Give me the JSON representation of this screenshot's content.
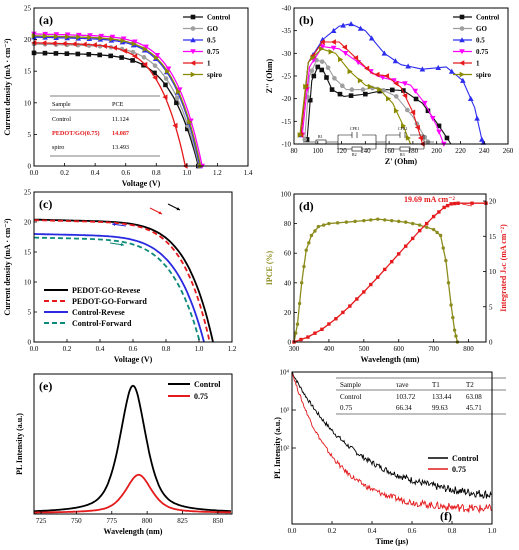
{
  "colors": {
    "control": "#111111",
    "go": "#9e9e9e",
    "p05": "#2d2df0",
    "p075": "#ff00ff",
    "p1": "#e41a1c",
    "spiro": "#8a8a00",
    "ipce": "#8c8c1e",
    "jsc": "#e41a1c",
    "pedot_rev": "#000000",
    "pedot_fwd": "#e41a1c",
    "control_rev": "#2a2ae0",
    "control_fwd": "#0a8a7a",
    "pl_control": "#000000",
    "pl_075": "#e41a1c"
  },
  "chart_data": [
    {
      "id": "a",
      "panel_label": "(a)",
      "type": "line",
      "xlabel": "Voltage (V)",
      "ylabel": "Current density (mA · cm⁻²)",
      "xlim": [
        0,
        1.4
      ],
      "ylim": [
        0,
        25
      ],
      "xticks": [
        "0.0",
        "0.2",
        "0.4",
        "0.6",
        "0.8",
        "1.0",
        "1.2",
        "1.4"
      ],
      "yticks": [
        "0",
        "5",
        "10",
        "15",
        "20",
        "25"
      ],
      "legend_position": "top-right",
      "series": [
        {
          "name": "Control",
          "jsc": 17.9,
          "voc": 1.075,
          "knee": 0.3,
          "marker": "square"
        },
        {
          "name": "GO",
          "jsc": 19.3,
          "voc": 1.08,
          "knee": 0.3,
          "marker": "circle"
        },
        {
          "name": "0.5",
          "jsc": 20.4,
          "voc": 1.085,
          "knee": 0.28,
          "marker": "triangle-up"
        },
        {
          "name": "0.75",
          "jsc": 20.9,
          "voc": 1.1,
          "knee": 0.27,
          "marker": "triangle-down"
        },
        {
          "name": "1",
          "jsc": 19.5,
          "voc": 0.99,
          "knee": 0.3,
          "marker": "triangle-left"
        },
        {
          "name": "spiro",
          "jsc": 20.6,
          "voc": 1.09,
          "knee": 0.28,
          "marker": "triangle-right"
        }
      ],
      "table": {
        "headers": [
          "Sample",
          "PCE"
        ],
        "rows": [
          [
            "Control",
            "11.124"
          ],
          [
            "PEDOT/GO(0.75)",
            "14.087"
          ],
          [
            "spiro",
            "13.493"
          ]
        ]
      }
    },
    {
      "id": "b",
      "panel_label": "(b)",
      "type": "line",
      "xlabel": "Z' (Ohm)",
      "ylabel": "Z'' (Ohm)",
      "xlim": [
        80,
        260
      ],
      "ylim": [
        -40,
        -10
      ],
      "y_inverted": true,
      "xticks": [
        "80",
        "100",
        "120",
        "140",
        "160",
        "180",
        "200",
        "220",
        "240",
        "260"
      ],
      "yticks": [
        "-40",
        "-35",
        "-30",
        "-25",
        "-20",
        "-15",
        "-10"
      ],
      "legend_position": "top-right",
      "series": [
        {
          "name": "Control",
          "points": [
            [
              91,
              -11
            ],
            [
              95,
              -24
            ],
            [
              100,
              -27
            ],
            [
              105,
              -26
            ],
            [
              112,
              -22
            ],
            [
              122,
              -20.5
            ],
            [
              140,
              -21
            ],
            [
              158,
              -22
            ],
            [
              172,
              -21.8
            ],
            [
              188,
              -19
            ],
            [
              202,
              -14
            ],
            [
              212,
              -10
            ]
          ]
        },
        {
          "name": "GO",
          "points": [
            [
              89,
              -11
            ],
            [
              93,
              -25
            ],
            [
              99,
              -28.5
            ],
            [
              106,
              -28
            ],
            [
              114,
              -24.5
            ],
            [
              124,
              -22
            ],
            [
              138,
              -22
            ],
            [
              150,
              -22.5
            ],
            [
              166,
              -20.5
            ],
            [
              180,
              -16
            ],
            [
              190,
              -11.5
            ],
            [
              194,
              -10
            ]
          ]
        },
        {
          "name": "0.5",
          "points": [
            [
              86,
              -12
            ],
            [
              92,
              -28
            ],
            [
              104,
              -33
            ],
            [
              118,
              -36
            ],
            [
              128,
              -36.5
            ],
            [
              140,
              -35
            ],
            [
              156,
              -30
            ],
            [
              170,
              -27.5
            ],
            [
              188,
              -26.5
            ],
            [
              208,
              -27
            ],
            [
              222,
              -24
            ],
            [
              232,
              -18
            ],
            [
              238,
              -11
            ],
            [
              240,
              -10
            ]
          ]
        },
        {
          "name": "0.75",
          "points": [
            [
              87,
              -12
            ],
            [
              93,
              -27
            ],
            [
              104,
              -31.5
            ],
            [
              118,
              -31
            ],
            [
              134,
              -28
            ],
            [
              150,
              -25
            ],
            [
              164,
              -24
            ],
            [
              178,
              -23
            ],
            [
              190,
              -19
            ],
            [
              200,
              -14
            ],
            [
              206,
              -10
            ]
          ]
        },
        {
          "name": "1",
          "points": [
            [
              86,
              -12
            ],
            [
              92,
              -28
            ],
            [
              104,
              -32.5
            ],
            [
              118,
              -32.5
            ],
            [
              132,
              -29
            ],
            [
              146,
              -25.5
            ],
            [
              158,
              -25
            ],
            [
              170,
              -22.5
            ],
            [
              180,
              -17
            ],
            [
              186,
              -12
            ],
            [
              188,
              -10
            ]
          ]
        },
        {
          "name": "spiro",
          "points": [
            [
              85,
              -12
            ],
            [
              92,
              -28
            ],
            [
              103,
              -31
            ],
            [
              115,
              -30
            ],
            [
              127,
              -26
            ],
            [
              140,
              -23
            ],
            [
              152,
              -22
            ],
            [
              163,
              -19
            ],
            [
              172,
              -14
            ],
            [
              178,
              -10
            ]
          ]
        }
      ],
      "circuit_labels": [
        "R1",
        "CPE1",
        "CPE2",
        "R2",
        "R3"
      ]
    },
    {
      "id": "c",
      "panel_label": "(c)",
      "type": "line",
      "xlabel": "Voltage (V)",
      "ylabel": "Current density (mA · cm⁻²)",
      "xlim": [
        0,
        1.2
      ],
      "ylim": [
        0,
        25
      ],
      "xticks": [
        "0.0",
        "0.2",
        "0.4",
        "0.6",
        "0.8",
        "1.0",
        "1.2"
      ],
      "yticks": [
        "0",
        "5",
        "10",
        "15",
        "20",
        "25"
      ],
      "legend_position": "bottom-left",
      "series": [
        {
          "name": "PEDOT-GO-Revese",
          "jsc": 20.4,
          "voc": 1.085,
          "knee": 0.24,
          "dash": false
        },
        {
          "name": "PEDOT-GO-Forward",
          "jsc": 20.3,
          "voc": 1.065,
          "knee": 0.25,
          "dash": true
        },
        {
          "name": "Control-Revese",
          "jsc": 18.0,
          "voc": 1.03,
          "knee": 0.28,
          "dash": false
        },
        {
          "name": "Control-Forward",
          "jsc": 17.4,
          "voc": 1.005,
          "knee": 0.3,
          "dash": true
        }
      ]
    },
    {
      "id": "d",
      "panel_label": "(d)",
      "type": "line",
      "xlabel": "Wavelength (nm)",
      "ylabel": "IPCE (%)",
      "ylabel_right": "Integrated Jₛᴄ (mA cm⁻²)",
      "xlim": [
        300,
        850
      ],
      "ylim": [
        0,
        100
      ],
      "ylim_right": [
        0,
        21
      ],
      "xticks": [
        "300",
        "400",
        "500",
        "600",
        "700",
        "800"
      ],
      "yticks": [
        "0",
        "20",
        "40",
        "60",
        "80",
        "100"
      ],
      "yticks_right": [
        "0",
        "5",
        "10",
        "15",
        "20"
      ],
      "annotation": "19.69 mA cm⁻²",
      "series": [
        {
          "name": "IPCE",
          "points": [
            [
              300,
              0
            ],
            [
              310,
              12
            ],
            [
              322,
              40
            ],
            [
              335,
              62
            ],
            [
              350,
              72
            ],
            [
              370,
              78
            ],
            [
              400,
              80
            ],
            [
              450,
              81
            ],
            [
              500,
              82
            ],
            [
              540,
              83
            ],
            [
              580,
              82
            ],
            [
              620,
              81
            ],
            [
              660,
              79
            ],
            [
              700,
              76
            ],
            [
              720,
              72
            ],
            [
              735,
              55
            ],
            [
              750,
              25
            ],
            [
              760,
              8
            ],
            [
              768,
              0
            ]
          ]
        },
        {
          "name": "Integrated Jsc",
          "points": [
            [
              300,
              0
            ],
            [
              340,
              0.7
            ],
            [
              380,
              1.8
            ],
            [
              420,
              3.3
            ],
            [
              460,
              5.1
            ],
            [
              500,
              7.1
            ],
            [
              540,
              9.2
            ],
            [
              580,
              11.4
            ],
            [
              620,
              13.6
            ],
            [
              660,
              15.8
            ],
            [
              700,
              17.8
            ],
            [
              730,
              19.1
            ],
            [
              750,
              19.6
            ],
            [
              770,
              19.69
            ],
            [
              850,
              19.69
            ]
          ]
        }
      ]
    },
    {
      "id": "e",
      "panel_label": "(e)",
      "type": "line",
      "xlabel": "Wavelength (nm)",
      "ylabel": "PL Intensity (a.u.)",
      "xlim": [
        720,
        860
      ],
      "ylim": [
        0,
        1.1
      ],
      "xticks": [
        "725",
        "750",
        "775",
        "800",
        "825",
        "850"
      ],
      "legend_position": "top-right",
      "series": [
        {
          "name": "Control",
          "peak": 790,
          "amplitude": 1.0,
          "width": 11
        },
        {
          "name": "0.75",
          "peak": 794,
          "amplitude": 0.3,
          "width": 11
        }
      ]
    },
    {
      "id": "f",
      "panel_label": "(f)",
      "type": "line",
      "xlabel": "Time (µs)",
      "ylabel": "PL Intensity (a.u.)",
      "xlim": [
        0,
        1.0
      ],
      "ylim_log": [
        0,
        4
      ],
      "xticks": [
        "0.0",
        "0.2",
        "0.4",
        "0.6",
        "0.8",
        "1.0"
      ],
      "yticks": [
        "10²",
        "10³",
        "10⁴"
      ],
      "legend_position": "middle-right",
      "series": [
        {
          "name": "Control",
          "tau_avg_ns": 103.72,
          "y_end_log": 1.0
        },
        {
          "name": "0.75",
          "tau_avg_ns": 66.34,
          "y_end_log": 0.6
        }
      ],
      "table": {
        "headers": [
          "Sample",
          "τave",
          "T1",
          "T2"
        ],
        "rows": [
          [
            "Control",
            "103.72",
            "133.44",
            "63.08"
          ],
          [
            "0.75",
            "66.34",
            "99.63",
            "45.71"
          ]
        ]
      }
    }
  ]
}
